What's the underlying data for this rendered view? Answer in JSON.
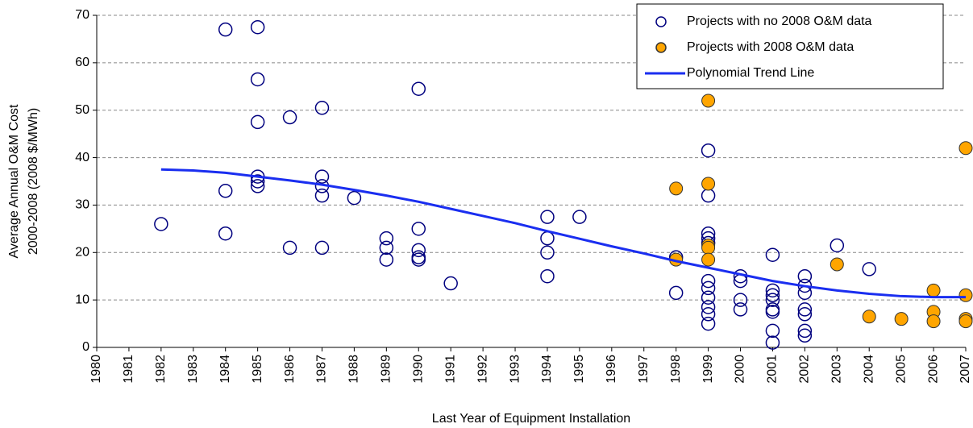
{
  "chart_data": {
    "type": "scatter",
    "xlabel": "Last Year of Equipment Installation",
    "ylabel": [
      "Average Annual O&M Cost",
      "2000-2008 (2008 $/MWh)"
    ],
    "xlim": [
      1980,
      2007
    ],
    "xticks": [
      1980,
      1981,
      1982,
      1983,
      1984,
      1985,
      1986,
      1987,
      1988,
      1989,
      1990,
      1991,
      1992,
      1993,
      1994,
      1995,
      1996,
      1997,
      1998,
      1999,
      2000,
      2001,
      2002,
      2003,
      2004,
      2005,
      2006,
      2007
    ],
    "ylim": [
      0,
      70
    ],
    "yticks": [
      0,
      10,
      20,
      30,
      40,
      50,
      60,
      70
    ],
    "grid": true,
    "legend": "top-right",
    "series": [
      {
        "name": "Projects with no 2008 O&M data",
        "color": "#00007f",
        "marker": "open",
        "x": [
          1982,
          1984,
          1984,
          1984,
          1985,
          1985,
          1985,
          1985,
          1985,
          1985,
          1986,
          1986,
          1987,
          1987,
          1987,
          1987,
          1987,
          1988,
          1989,
          1989,
          1989,
          1990,
          1990,
          1990,
          1990,
          1990,
          1991,
          1994,
          1994,
          1994,
          1994,
          1995,
          1998,
          1998,
          1999,
          1999,
          1999,
          1999,
          1999,
          1999,
          1999,
          1999,
          1999,
          1999,
          1999,
          2000,
          2000,
          2000,
          2000,
          2001,
          2001,
          2001,
          2001,
          2001,
          2001,
          2001,
          2001,
          2002,
          2002,
          2002,
          2002,
          2002,
          2002,
          2002,
          2003,
          2004
        ],
        "values": [
          26,
          67,
          33,
          24,
          67.5,
          56.5,
          47.5,
          36,
          35,
          34,
          48.5,
          21,
          50.5,
          36,
          34,
          32,
          21,
          31.5,
          23,
          21,
          18.5,
          54.5,
          25,
          20.5,
          19,
          18.5,
          13.5,
          27.5,
          23,
          20,
          15,
          27.5,
          19,
          11.5,
          41.5,
          32,
          24,
          23,
          22,
          14,
          12.5,
          10.5,
          8.5,
          7,
          5,
          15,
          14,
          10,
          8,
          19.5,
          12,
          11,
          10,
          8,
          7.5,
          3.5,
          1,
          15,
          13,
          11.5,
          8,
          7,
          3.5,
          2.5,
          21.5,
          16.5
        ]
      },
      {
        "name": "Projects with 2008 O&M data",
        "color": "#ffa500",
        "marker": "filled",
        "x": [
          1998,
          1998,
          1999,
          1999,
          1999,
          1999,
          1999,
          2003,
          2004,
          2005,
          2006,
          2006,
          2006,
          2007,
          2007,
          2007,
          2007
        ],
        "values": [
          33.5,
          18.5,
          52,
          34.5,
          21.5,
          21,
          18.5,
          17.5,
          6.5,
          6,
          12,
          7.5,
          5.5,
          42,
          11,
          6,
          5.5
        ]
      },
      {
        "name": "Polynomial Trend Line",
        "color": "#1a2ef0",
        "marker": "line",
        "x": [
          1982,
          1983,
          1984,
          1985,
          1986,
          1987,
          1988,
          1989,
          1990,
          1991,
          1992,
          1993,
          1994,
          1995,
          1996,
          1997,
          1998,
          1999,
          2000,
          2001,
          2002,
          2003,
          2004,
          2005,
          2006,
          2007
        ],
        "values": [
          37.5,
          37.3,
          36.8,
          36,
          35.2,
          34.3,
          33.2,
          32,
          30.7,
          29.2,
          27.7,
          26.2,
          24.5,
          22.9,
          21.3,
          19.8,
          18.2,
          16.8,
          15.4,
          14,
          12.9,
          12,
          11.3,
          10.8,
          10.6,
          10.6
        ]
      }
    ]
  }
}
